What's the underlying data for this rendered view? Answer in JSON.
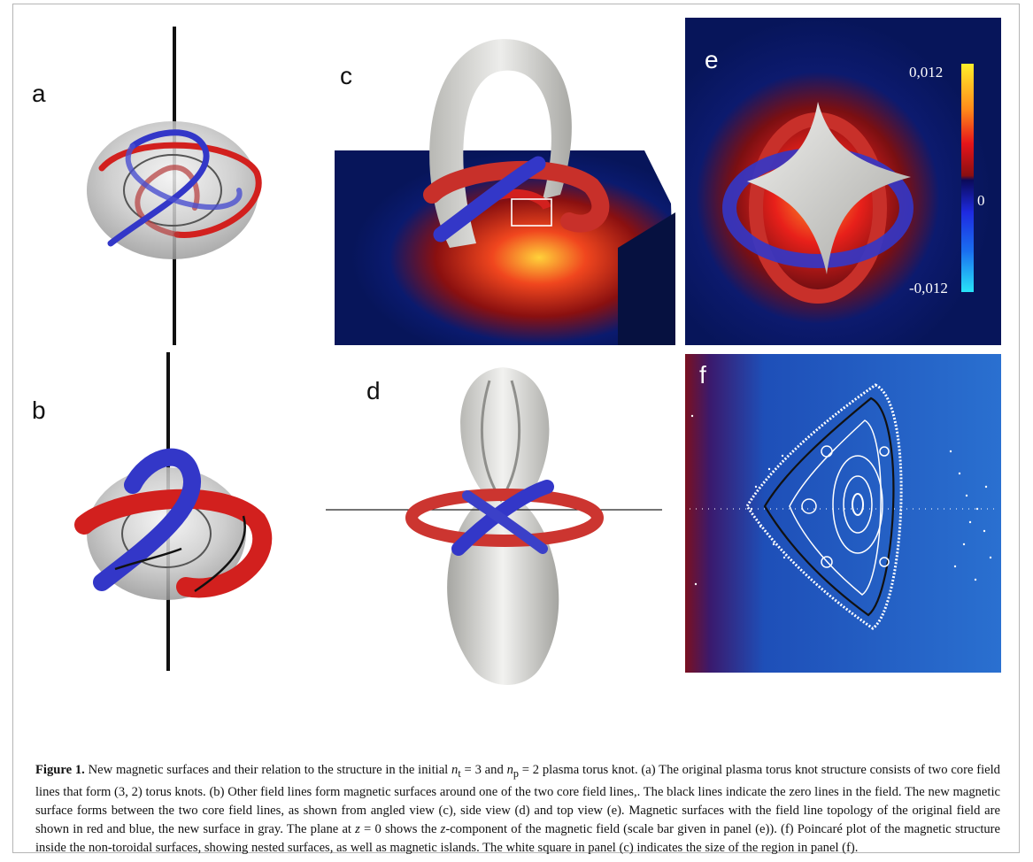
{
  "panels": {
    "a": {
      "label": "a"
    },
    "b": {
      "label": "b"
    },
    "c": {
      "label": "c"
    },
    "d": {
      "label": "d"
    },
    "e": {
      "label": "e",
      "colorbar": {
        "max_label": "0,012",
        "mid_label": "0",
        "min_label": "-0,012",
        "colors_top_to_bottom": [
          "#ffee2a",
          "#ff8a1a",
          "#e5141a",
          "#8a0f12",
          "#0a0a5a",
          "#1e2ae0",
          "#1a6ef0",
          "#28e4f8"
        ]
      }
    },
    "f": {
      "label": "f"
    }
  },
  "colors": {
    "red_tube": "#d2201e",
    "blue_tube": "#3337c8",
    "gray_surface": "#d9d9d6",
    "field_dark_blue": "#07155a",
    "poincare_background": "#1e64c6"
  },
  "caption": {
    "figure_label": "Figure 1.",
    "s1": " New magnetic surfaces and their relation to the structure in the initial ",
    "nt_var": "n",
    "nt_sub": "t",
    "eq1": " = 3 and ",
    "np_var": "n",
    "np_sub": "p",
    "s2": " = 2 plasma torus knot. (a) The original plasma torus knot structure consists of two core field lines that form (3,  2) torus knots. (b) Other field lines form magnetic surfaces around one of the two core field lines,. The black lines indicate the zero lines in the field. The new magnetic surface forms between the two core field lines, as shown from angled view (c), side view (d) and top view (e). Magnetic surfaces with the field line topology of the original field are shown in red and blue, the new surface in gray. The plane at ",
    "z_var": "z",
    "s3": " = 0 shows the ",
    "z_var2": "z",
    "s4": "-component of the magnetic field (scale bar given in panel (e)). (f) Poincaré plot of the magnetic structure inside the non-toroidal surfaces, showing nested surfaces, as well as magnetic islands. The white square in panel (c) indicates the size of the region in panel (f)."
  }
}
